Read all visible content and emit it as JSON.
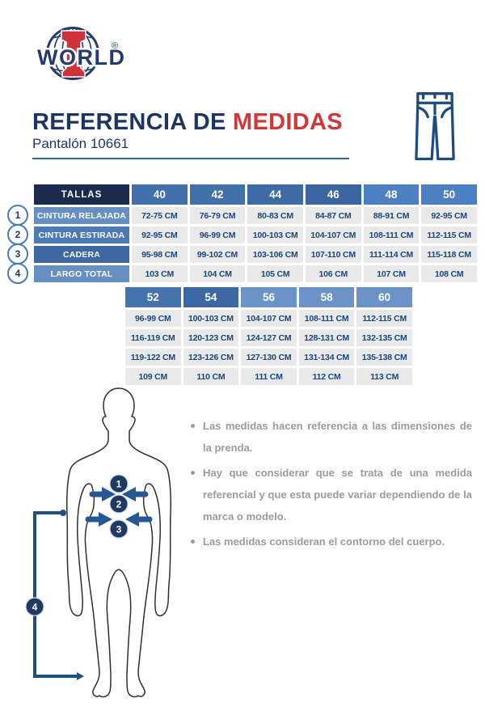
{
  "logo": {
    "brand": "WORLD",
    "registered": "®"
  },
  "header": {
    "title_primary": "REFERENCIA DE",
    "title_accent": "MEDIDAS",
    "subtitle": "Pantalón 10661"
  },
  "size_chart": {
    "corner_label": "TALLAS",
    "rows": [
      {
        "num": "1",
        "label": "CINTURA RELAJADA"
      },
      {
        "num": "2",
        "label": "CINTURA ESTIRADA"
      },
      {
        "num": "3",
        "label": "CADERA"
      },
      {
        "num": "4",
        "label": "LARGO TOTAL"
      }
    ],
    "group1": {
      "sizes": [
        "40",
        "42",
        "44",
        "46",
        "48",
        "50"
      ],
      "values": [
        [
          "72-75 CM",
          "76-79 CM",
          "80-83 CM",
          "84-87 CM",
          "88-91 CM",
          "92-95 CM"
        ],
        [
          "92-95 CM",
          "96-99 CM",
          "100-103 CM",
          "104-107 CM",
          "108-111 CM",
          "112-115 CM"
        ],
        [
          "95-98 CM",
          "99-102 CM",
          "103-106 CM",
          "107-110 CM",
          "111-114 CM",
          "115-118 CM"
        ],
        [
          "103 CM",
          "104 CM",
          "105 CM",
          "106 CM",
          "107 CM",
          "108 CM"
        ]
      ]
    },
    "group2": {
      "sizes": [
        "52",
        "54",
        "56",
        "58",
        "60"
      ],
      "values": [
        [
          "96-99 CM",
          "100-103 CM",
          "104-107 CM",
          "108-111 CM",
          "112-115 CM"
        ],
        [
          "116-119 CM",
          "120-123 CM",
          "124-127 CM",
          "128-131 CM",
          "132-135 CM"
        ],
        [
          "119-122 CM",
          "123-126 CM",
          "127-130 CM",
          "131-134 CM",
          "135-138 CM"
        ],
        [
          "109 CM",
          "110 CM",
          "111 CM",
          "112 CM",
          "113 CM"
        ]
      ]
    }
  },
  "figure": {
    "markers": [
      "1",
      "2",
      "3",
      "4"
    ]
  },
  "notes": [
    "Las medidas hacen referencia a las dimensiones de la prenda.",
    "Hay que considerar que se trata de una medida referencial y que esta puede variar dependiendo de la marca o modelo.",
    "Las medidas consideran el contorno del cuerpo."
  ],
  "icons": {
    "logo": "world-globe-logo",
    "product": "pants-icon",
    "diagram": "male-body-silhouette"
  },
  "colors": {
    "navy": "#1e3563",
    "navy_dark": "#1b2b4e",
    "red": "#d23737",
    "value_text": "#17477f",
    "cell_gray": "#e9e9e9",
    "note_gray": "#9b9b9b",
    "diagram_blue": "#1d5080",
    "marker_navy": "#1e3a63",
    "header1": [
      "#4170ab",
      "#4170ab",
      "#3e6ba5",
      "#3a65a0",
      "#4d80c1",
      "#4d80c1"
    ],
    "header2": [
      "#4573ae",
      "#3c68a3",
      "#6b93c8",
      "#6b93c8",
      "#6b93c8"
    ],
    "label_rows": [
      "#6690c3",
      "#4d7ab6",
      "#3d68a2",
      "#6690c3"
    ]
  }
}
